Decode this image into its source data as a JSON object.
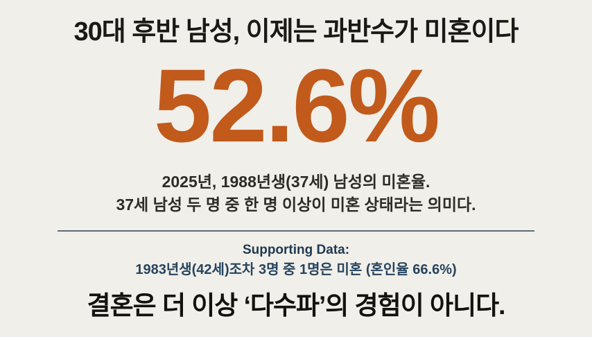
{
  "slide": {
    "title": "30대 후반 남성, 이제는 과반수가 미혼이다",
    "headline_stat": {
      "value": "52.6%"
    },
    "description": {
      "line1": "2025년, 1988년생(37세) 남성의 미혼율.",
      "line2": "37세 남성 두 명 중 한 명 이상이 미혼 상태라는 의미다."
    },
    "supporting": {
      "label": "Supporting Data:",
      "detail": "1983년생(42세)조차 3명 중 1명은 미혼 (혼인율 66.6%)"
    },
    "conclusion": "결혼은 더 이상 ‘다수파’의 경험이 아니다.",
    "stats": {
      "unmarried_rate_1988_male_pct": 52.6,
      "reference_year": 2025,
      "birth_year_primary": 1988,
      "age_primary": 37,
      "birth_year_supporting": 1983,
      "age_supporting": 42,
      "married_rate_1983_pct": 66.6
    },
    "colors": {
      "background": "#f1efe9",
      "title_text": "#1b1916",
      "stat_orange": "#c25a1b",
      "body_text": "#2e2b27",
      "navy_label": "#1e3952",
      "navy_detail": "#27445f",
      "divider": "#5f6e78",
      "conclusion_text": "#141210"
    }
  }
}
